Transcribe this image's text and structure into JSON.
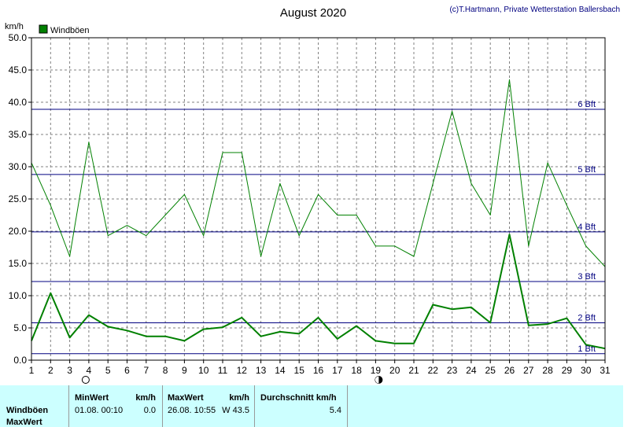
{
  "header": {
    "title": "August 2020",
    "credit": "(c)T.Hartmann, Private Wetterstation Ballersbach",
    "unit": "km/h",
    "legend_label": "Windböen"
  },
  "colors": {
    "series": "#008000",
    "beaufort_line": "#000080",
    "grid": "#808080",
    "footer_bg": "#ccffff"
  },
  "chart_data": {
    "type": "line",
    "title": "August 2020",
    "ylabel": "km/h",
    "xlabel": "",
    "ylim": [
      0,
      50
    ],
    "y_ticks": [
      "0.0",
      "5.0",
      "10.0",
      "15.0",
      "20.0",
      "25.0",
      "30.0",
      "35.0",
      "40.0",
      "45.0",
      "50.0"
    ],
    "x": [
      1,
      2,
      3,
      4,
      5,
      6,
      7,
      8,
      9,
      10,
      11,
      12,
      13,
      14,
      15,
      16,
      17,
      18,
      19,
      20,
      21,
      22,
      23,
      24,
      25,
      26,
      27,
      28,
      29,
      30,
      31
    ],
    "grid": true,
    "legend": "top-left",
    "series": [
      {
        "name": "Windböen",
        "style": "thin",
        "values": [
          30.6,
          24.0,
          16.1,
          33.8,
          19.3,
          20.9,
          19.3,
          22.5,
          25.7,
          19.3,
          32.2,
          32.2,
          16.1,
          27.4,
          19.3,
          25.7,
          22.5,
          22.5,
          17.7,
          17.7,
          16.1,
          27.4,
          38.6,
          27.4,
          22.5,
          43.5,
          17.7,
          30.6,
          24.0,
          17.7,
          14.5
        ]
      },
      {
        "style": "thick",
        "values": [
          3.0,
          10.4,
          3.5,
          7.0,
          5.2,
          4.6,
          3.7,
          3.7,
          3.0,
          4.8,
          5.1,
          6.6,
          3.7,
          4.4,
          4.1,
          6.6,
          3.3,
          5.3,
          3.0,
          2.6,
          2.6,
          8.6,
          7.9,
          8.2,
          5.8,
          19.5,
          5.4,
          5.6,
          6.5,
          2.4,
          1.8
        ]
      }
    ],
    "reference_lines": [
      {
        "label": "1 Bft",
        "value": 1.0
      },
      {
        "label": "2 Bft",
        "value": 5.8
      },
      {
        "label": "3 Bft",
        "value": 12.2
      },
      {
        "label": "4 Bft",
        "value": 19.9
      },
      {
        "label": "5 Bft",
        "value": 28.8
      },
      {
        "label": "6 Bft",
        "value": 38.9
      }
    ],
    "moon_phases": [
      {
        "day": 4,
        "phase": "full-moon"
      },
      {
        "day": 19,
        "phase": "new-moon"
      }
    ]
  },
  "footer": {
    "row_labels": [
      "Windböen",
      "MaxWert"
    ],
    "min": {
      "header": "MinWert",
      "unit": "km/h",
      "time": "01.08.  00:10",
      "value": "0.0"
    },
    "max": {
      "header": "MaxWert",
      "unit": "km/h",
      "time": "26.08.  10:55",
      "value": "W 43.5"
    },
    "avg": {
      "header": "Durchschnitt km/h",
      "value": "5.4"
    }
  }
}
